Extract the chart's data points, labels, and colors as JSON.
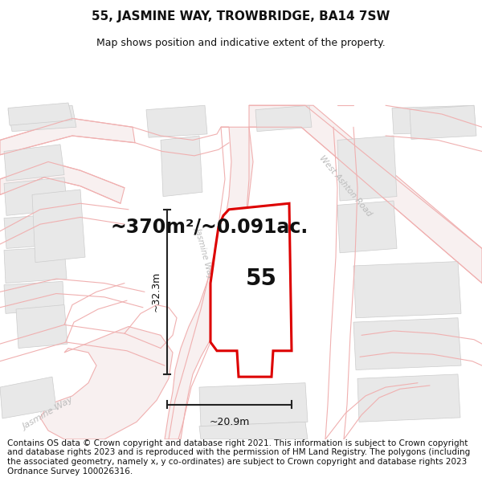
{
  "title": "55, JASMINE WAY, TROWBRIDGE, BA14 7SW",
  "subtitle": "Map shows position and indicative extent of the property.",
  "footer": "Contains OS data © Crown copyright and database right 2021. This information is subject to Crown copyright and database rights 2023 and is reproduced with the permission of HM Land Registry. The polygons (including the associated geometry, namely x, y co-ordinates) are subject to Crown copyright and database rights 2023 Ordnance Survey 100026316.",
  "area_label": "~370m²/~0.091ac.",
  "number_label": "55",
  "dim_height": "~32.3m",
  "dim_width": "~20.9m",
  "map_bg": "#ffffff",
  "road_fill": "#ffffff",
  "road_edge": "#f0b0b0",
  "building_fill": "#e8e8e8",
  "building_edge": "#cccccc",
  "highlight_color": "#dd0000",
  "dim_line_color": "#222222",
  "text_color": "#111111",
  "road_label_color": "#aaaaaa",
  "title_fontsize": 11,
  "subtitle_fontsize": 9,
  "footer_fontsize": 7.5,
  "area_fontsize": 17,
  "number_fontsize": 20,
  "dim_fontsize": 9
}
